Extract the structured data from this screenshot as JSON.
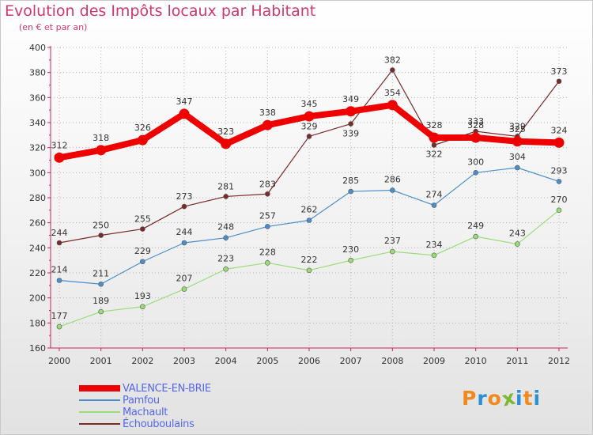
{
  "title": "Evolution des Impôts locaux par Habitant",
  "subtitle": "(en € et par an)",
  "logo": {
    "text": "Proxiti",
    "letters": [
      "P",
      "r",
      "o",
      "x",
      "i",
      "t",
      "i"
    ],
    "colors": [
      "#f08a1e",
      "#2a8fd6",
      "#f08a1e",
      "#7cb832",
      "#2a8fd6",
      "#f08a1e",
      "#2a8fd6"
    ]
  },
  "chart_data": {
    "type": "line",
    "title": "Evolution des Impôts locaux par Habitant",
    "subtitle": "(en € et par an)",
    "xlabel": "",
    "ylabel": "",
    "ylim": [
      160,
      400
    ],
    "yticks": [
      160,
      180,
      200,
      220,
      240,
      260,
      280,
      300,
      320,
      340,
      360,
      380,
      400
    ],
    "grid": true,
    "legend_position": "bottom-left",
    "categories": [
      "2000",
      "2001",
      "2002",
      "2003",
      "2004",
      "2005",
      "2006",
      "2007",
      "2008",
      "2009",
      "2010",
      "2011",
      "2012"
    ],
    "series": [
      {
        "name": "VALENCE-EN-BRIE",
        "color": "#ee0000",
        "values": [
          312,
          318,
          326,
          347,
          323,
          338,
          345,
          349,
          354,
          328,
          328,
          325,
          324
        ],
        "labels": [
          "312",
          "318",
          "326",
          "347",
          "323",
          "338",
          "345",
          "349",
          "354",
          "328",
          "328",
          "325",
          "324"
        ]
      },
      {
        "name": "Pamfou",
        "color": "#4a8fcc",
        "values": [
          214,
          211,
          229,
          244,
          248,
          257,
          262,
          285,
          286,
          274,
          300,
          304,
          293
        ],
        "labels": [
          "214",
          "211",
          "229",
          "244",
          "248",
          "257",
          "262",
          "285",
          "286",
          "274",
          "300",
          "304",
          "293"
        ]
      },
      {
        "name": "Machault",
        "color": "#99dd77",
        "values": [
          177,
          189,
          193,
          207,
          223,
          228,
          222,
          230,
          237,
          234,
          249,
          243,
          270
        ],
        "labels": [
          "177",
          "189",
          "193",
          "207",
          "223",
          "228",
          "222",
          "230",
          "237",
          "234",
          "249",
          "243",
          "270"
        ]
      },
      {
        "name": "Échouboulains",
        "color": "#7a2a2a",
        "values": [
          244,
          250,
          255,
          273,
          281,
          283,
          329,
          339,
          382,
          322,
          333,
          329,
          373
        ],
        "labels": [
          "244",
          "250",
          "255",
          "273",
          "281",
          "283",
          "329",
          "339",
          "382",
          "322",
          "333",
          "329",
          "373"
        ]
      }
    ]
  }
}
